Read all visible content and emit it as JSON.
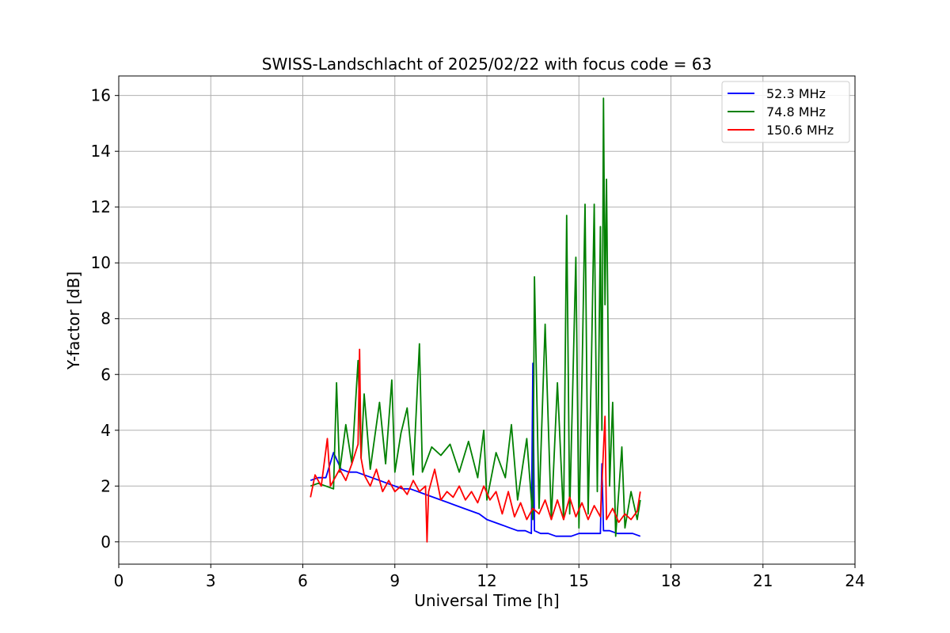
{
  "chart_data": {
    "type": "line",
    "title": "SWISS-Landschlacht of 2025/02/22 with focus code = 63",
    "xlabel": "Universal Time [h]",
    "ylabel": "Y-factor [dB]",
    "xlim": [
      0,
      24
    ],
    "ylim": [
      -0.8,
      16.7
    ],
    "xticks": [
      0,
      3,
      6,
      9,
      12,
      15,
      18,
      21,
      24
    ],
    "yticks": [
      0,
      2,
      4,
      6,
      8,
      10,
      12,
      14,
      16
    ],
    "grid": true,
    "legend_position": "top-right",
    "series": [
      {
        "name": "52.3 MHz",
        "color": "#0000ff",
        "x": [
          6.25,
          6.5,
          6.75,
          7.0,
          7.25,
          7.5,
          7.75,
          8.0,
          8.25,
          8.5,
          8.75,
          9.0,
          9.25,
          9.5,
          9.75,
          10.0,
          10.25,
          10.5,
          10.75,
          11.0,
          11.25,
          11.5,
          11.75,
          12.0,
          12.25,
          12.5,
          12.75,
          13.0,
          13.25,
          13.45,
          13.5,
          13.55,
          13.75,
          14.0,
          14.25,
          14.5,
          14.75,
          15.0,
          15.25,
          15.5,
          15.7,
          15.75,
          15.8,
          16.0,
          16.25,
          16.5,
          16.75,
          17.0
        ],
        "values": [
          2.2,
          2.3,
          2.3,
          3.2,
          2.6,
          2.5,
          2.5,
          2.4,
          2.3,
          2.2,
          2.1,
          2.0,
          1.9,
          1.9,
          1.8,
          1.7,
          1.6,
          1.5,
          1.4,
          1.3,
          1.2,
          1.1,
          1.0,
          0.8,
          0.7,
          0.6,
          0.5,
          0.4,
          0.4,
          0.3,
          6.4,
          0.4,
          0.3,
          0.3,
          0.2,
          0.2,
          0.2,
          0.3,
          0.3,
          0.3,
          0.3,
          2.8,
          0.4,
          0.4,
          0.3,
          0.3,
          0.3,
          0.2
        ]
      },
      {
        "name": "74.8 MHz",
        "color": "#008000",
        "x": [
          6.25,
          6.5,
          6.75,
          7.0,
          7.1,
          7.2,
          7.4,
          7.6,
          7.8,
          7.9,
          8.0,
          8.2,
          8.5,
          8.7,
          8.9,
          9.0,
          9.2,
          9.4,
          9.6,
          9.8,
          9.9,
          10.2,
          10.5,
          10.8,
          11.1,
          11.4,
          11.7,
          11.9,
          12.0,
          12.3,
          12.6,
          12.8,
          13.0,
          13.3,
          13.5,
          13.55,
          13.7,
          13.9,
          14.1,
          14.3,
          14.5,
          14.6,
          14.7,
          14.9,
          15.0,
          15.1,
          15.2,
          15.3,
          15.4,
          15.5,
          15.6,
          15.7,
          15.75,
          15.8,
          15.85,
          15.9,
          16.0,
          16.1,
          16.2,
          16.4,
          16.5,
          16.7,
          16.9,
          17.0
        ],
        "values": [
          2.0,
          2.1,
          2.0,
          1.9,
          5.7,
          2.5,
          4.2,
          2.8,
          6.5,
          3.0,
          5.3,
          2.6,
          5.0,
          2.8,
          5.8,
          2.5,
          3.9,
          4.8,
          2.4,
          7.1,
          2.5,
          3.4,
          3.1,
          3.5,
          2.5,
          3.6,
          2.3,
          4.0,
          1.5,
          3.2,
          2.3,
          4.2,
          1.5,
          3.7,
          0.8,
          9.5,
          1.2,
          7.8,
          0.8,
          5.7,
          0.8,
          11.7,
          1.0,
          10.2,
          0.5,
          5.8,
          12.1,
          1.0,
          6.0,
          12.1,
          1.8,
          11.3,
          4.0,
          15.9,
          8.5,
          13.0,
          2.0,
          5.0,
          0.2,
          3.4,
          0.5,
          1.8,
          0.8,
          1.5
        ]
      },
      {
        "name": "150.6 MHz",
        "color": "#ff0000",
        "x": [
          6.25,
          6.4,
          6.6,
          6.8,
          6.9,
          7.0,
          7.2,
          7.4,
          7.6,
          7.8,
          7.85,
          7.9,
          8.0,
          8.2,
          8.4,
          8.6,
          8.8,
          9.0,
          9.2,
          9.4,
          9.6,
          9.8,
          10.0,
          10.05,
          10.1,
          10.3,
          10.5,
          10.7,
          10.9,
          11.1,
          11.3,
          11.5,
          11.7,
          11.9,
          12.1,
          12.3,
          12.5,
          12.7,
          12.9,
          13.1,
          13.3,
          13.5,
          13.7,
          13.9,
          14.1,
          14.3,
          14.5,
          14.7,
          14.9,
          15.1,
          15.3,
          15.5,
          15.7,
          15.85,
          15.9,
          16.1,
          16.3,
          16.5,
          16.7,
          16.9,
          17.0
        ],
        "values": [
          1.6,
          2.4,
          2.0,
          3.7,
          2.0,
          2.2,
          2.6,
          2.2,
          2.8,
          3.5,
          6.9,
          3.0,
          2.4,
          2.0,
          2.6,
          1.8,
          2.2,
          1.8,
          2.0,
          1.7,
          2.2,
          1.8,
          2.0,
          0.0,
          1.8,
          2.6,
          1.5,
          1.8,
          1.6,
          2.0,
          1.5,
          1.8,
          1.4,
          2.0,
          1.5,
          1.8,
          1.0,
          1.8,
          0.9,
          1.4,
          0.8,
          1.2,
          1.0,
          1.5,
          0.8,
          1.5,
          0.8,
          1.6,
          0.9,
          1.4,
          0.8,
          1.3,
          0.9,
          4.5,
          0.8,
          1.2,
          0.7,
          1.0,
          0.8,
          1.1,
          1.8
        ]
      }
    ]
  }
}
